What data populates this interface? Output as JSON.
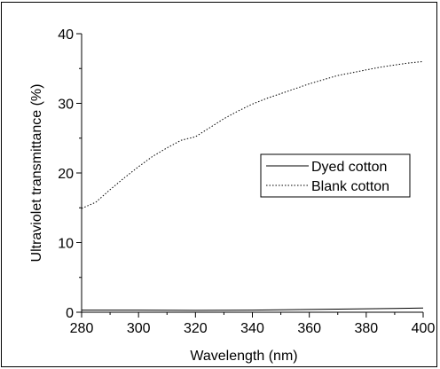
{
  "chart_data": {
    "type": "line",
    "xlabel": "Wavelength (nm)",
    "ylabel": "Ultraviolet transmittance (%)",
    "xlim": [
      280,
      400
    ],
    "ylim": [
      0,
      40
    ],
    "xticks": [
      "280",
      "300",
      "320",
      "340",
      "360",
      "380",
      "400"
    ],
    "yticks": [
      "0",
      "10",
      "20",
      "30",
      "40"
    ],
    "grid": false,
    "legend": {
      "placement": "center-right",
      "boxed": true
    },
    "series": [
      {
        "name": "Dyed cotton",
        "style": "solid",
        "x": [
          280,
          290,
          300,
          310,
          320,
          330,
          340,
          350,
          360,
          370,
          380,
          390,
          400
        ],
        "y": [
          0.3,
          0.3,
          0.3,
          0.28,
          0.27,
          0.28,
          0.3,
          0.35,
          0.4,
          0.45,
          0.5,
          0.55,
          0.6
        ]
      },
      {
        "name": "Blank cotton",
        "style": "dotted",
        "x": [
          280,
          285,
          290,
          295,
          300,
          305,
          310,
          315,
          320,
          325,
          330,
          335,
          340,
          345,
          350,
          355,
          360,
          365,
          370,
          375,
          380,
          385,
          390,
          395,
          400
        ],
        "y": [
          14.9,
          15.8,
          17.6,
          19.3,
          20.9,
          22.4,
          23.6,
          24.7,
          25.2,
          26.5,
          27.8,
          28.9,
          29.9,
          30.7,
          31.4,
          32.1,
          32.8,
          33.4,
          34.0,
          34.4,
          34.8,
          35.2,
          35.5,
          35.8,
          36.0
        ]
      }
    ]
  }
}
